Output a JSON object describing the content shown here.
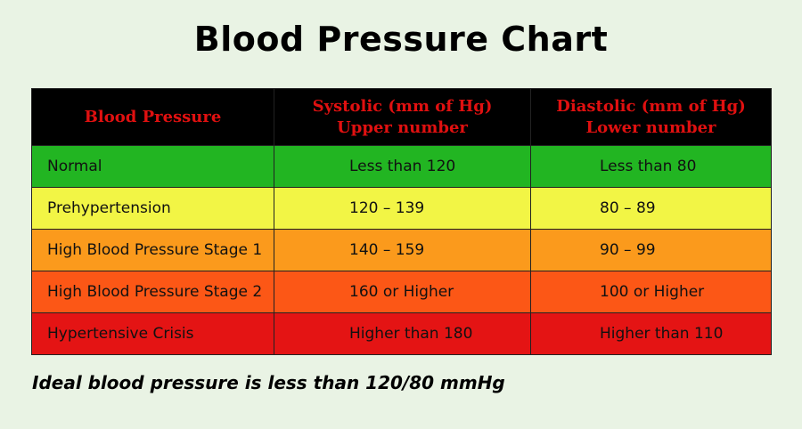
{
  "title": "Blood Pressure Chart",
  "table": {
    "headers": [
      {
        "lines": [
          "Blood Pressure"
        ]
      },
      {
        "lines": [
          "Systolic (mm of Hg)",
          "Upper number"
        ]
      },
      {
        "lines": [
          "Diastolic (mm of Hg)",
          "Lower number"
        ]
      }
    ],
    "rows": [
      {
        "category": "Normal",
        "systolic": "Less than 120",
        "diastolic": "Less than 80",
        "color": "#22b522"
      },
      {
        "category": "Prehypertension",
        "systolic": "120 – 139",
        "diastolic": "80 – 89",
        "color": "#f2f545"
      },
      {
        "category": "High Blood Pressure Stage 1",
        "systolic": "140 – 159",
        "diastolic": "90 – 99",
        "color": "#fb9a1c"
      },
      {
        "category": "High Blood Pressure Stage 2",
        "systolic": "160 or Higher",
        "diastolic": "100 or Higher",
        "color": "#fc5716"
      },
      {
        "category": "Hypertensive Crisis",
        "systolic": "Higher than 180",
        "diastolic": "Higher than 110",
        "color": "#e41414"
      }
    ]
  },
  "footnote": "Ideal blood pressure is less than 120/80 mmHg",
  "colors": {
    "background": "#e9f3e4",
    "header_bg": "#000000",
    "header_text": "#e01010"
  }
}
